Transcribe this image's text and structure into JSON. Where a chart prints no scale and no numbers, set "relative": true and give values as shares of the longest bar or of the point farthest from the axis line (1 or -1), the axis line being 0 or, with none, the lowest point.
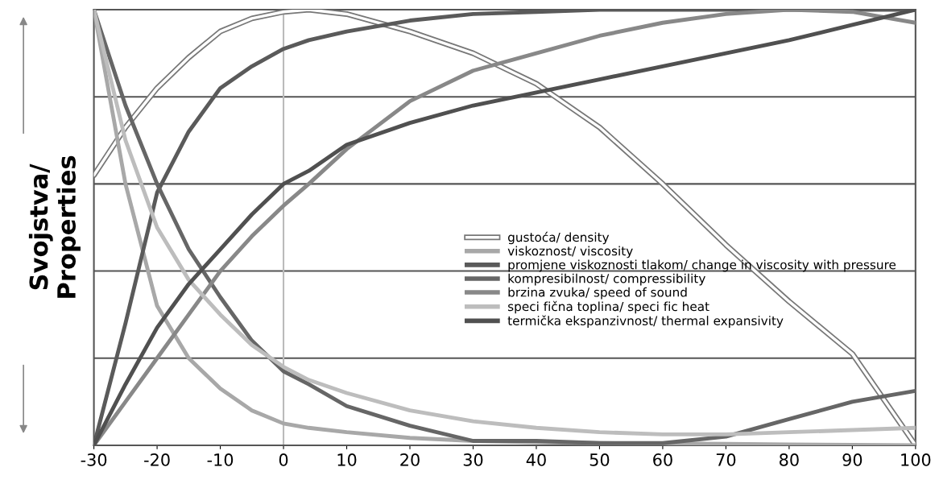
{
  "chart_data": {
    "type": "line",
    "relative": true,
    "ylabel": "Svojstva/\nProperties",
    "x": [
      -30,
      -25,
      -20,
      -15,
      -10,
      -5,
      0,
      4,
      10,
      20,
      30,
      40,
      50,
      60,
      70,
      80,
      90,
      100
    ],
    "xlim": [
      -30,
      100
    ],
    "xticks": [
      -30,
      -20,
      -10,
      0,
      10,
      20,
      30,
      40,
      50,
      60,
      70,
      80,
      90,
      100
    ],
    "legend": "right",
    "line_style": "solid",
    "marker": "none",
    "ref_lines": [
      {
        "axis": "y",
        "value": 0.2,
        "color": "#555555"
      },
      {
        "axis": "y",
        "value": 0.4,
        "color": "#555555"
      },
      {
        "axis": "y",
        "value": 0.6,
        "color": "#555555"
      },
      {
        "axis": "y",
        "value": 0.8,
        "color": "#555555"
      },
      {
        "axis": "y",
        "value": 1,
        "color": "#555555"
      },
      {
        "axis": "x",
        "value": 0,
        "color": "#bbbbbb"
      }
    ],
    "series": [
      {
        "name": "gustoća/ density",
        "color": "#ffffff",
        "values": [
          0.62,
          0.73,
          0.82,
          0.89,
          0.95,
          0.98,
          0.995,
          1.0,
          0.99,
          0.95,
          0.9,
          0.83,
          0.73,
          0.6,
          0.46,
          0.33,
          0.21,
          0.0
        ]
      },
      {
        "name": "viskoznost/ viscosity",
        "color": "#a8a8a8",
        "values": [
          1.0,
          0.6,
          0.32,
          0.2,
          0.13,
          0.08,
          0.05,
          0.04,
          0.03,
          0.017,
          0.01,
          0.007,
          0.005,
          0.004,
          0.003,
          0.002,
          0.001,
          0.0
        ]
      },
      {
        "name": "promjene viskoznosti tlakom/ change in viscosity with pressure",
        "color": "#5a5a5a",
        "values": [
          0.0,
          0.28,
          0.58,
          0.72,
          0.82,
          0.87,
          0.91,
          0.93,
          0.95,
          0.975,
          0.99,
          0.995,
          1.0,
          1.0,
          1.0,
          1.0,
          1.0,
          1.0
        ]
      },
      {
        "name": "kompresibilnost/ compressibility",
        "color": "#666666",
        "values": [
          1.0,
          0.78,
          0.6,
          0.45,
          0.34,
          0.24,
          0.17,
          0.14,
          0.09,
          0.045,
          0.01,
          0.01,
          0.005,
          0.005,
          0.02,
          0.06,
          0.1,
          0.125
        ]
      },
      {
        "name": "brzina zvuka/ speed of sound",
        "color": "#888888",
        "values": [
          0.0,
          0.1,
          0.2,
          0.3,
          0.4,
          0.48,
          0.55,
          0.6,
          0.68,
          0.79,
          0.86,
          0.9,
          0.94,
          0.97,
          0.99,
          1.0,
          0.995,
          0.97
        ]
      },
      {
        "name": "speci fična toplina/ speci fic heat",
        "color": "#bdbdbd",
        "values": [
          1.0,
          0.7,
          0.5,
          0.38,
          0.3,
          0.23,
          0.18,
          0.15,
          0.12,
          0.08,
          0.055,
          0.04,
          0.03,
          0.025,
          0.025,
          0.03,
          0.035,
          0.04
        ]
      },
      {
        "name": "termička ekspanzivnost/ thermal expansivity",
        "color": "#505050",
        "values": [
          0.0,
          0.14,
          0.27,
          0.37,
          0.45,
          0.53,
          0.6,
          0.63,
          0.69,
          0.74,
          0.78,
          0.81,
          0.84,
          0.87,
          0.9,
          0.93,
          0.965,
          1.0
        ]
      }
    ]
  }
}
